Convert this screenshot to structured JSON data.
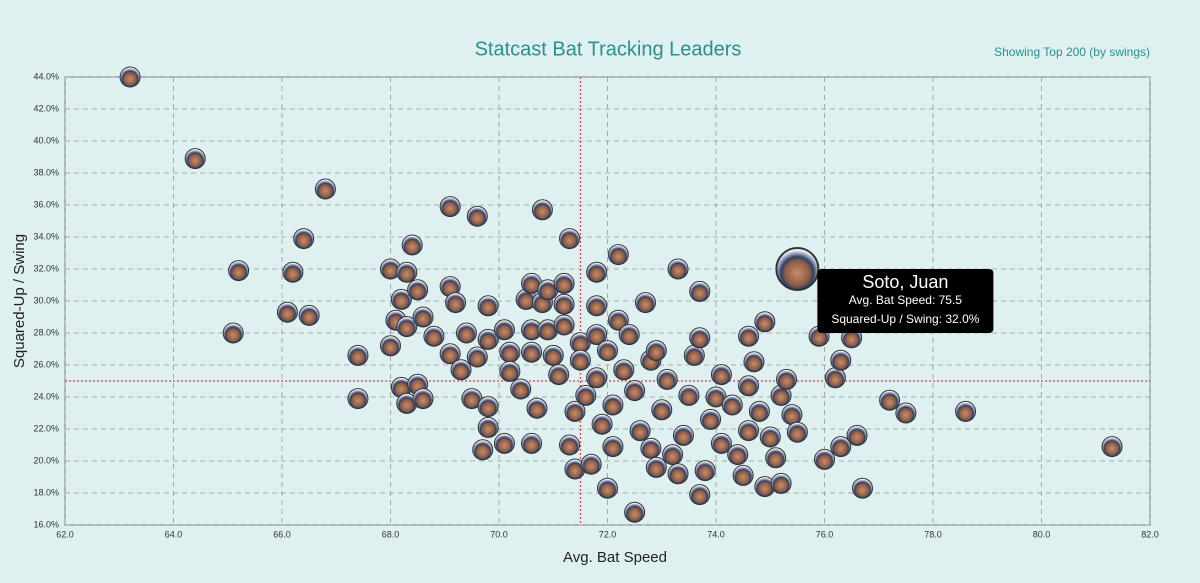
{
  "chart_data": {
    "type": "scatter",
    "title": "Statcast Bat Tracking Leaders",
    "subtitle": "Showing Top 200 (by swings)",
    "x_label": "Avg. Bat Speed",
    "y_label": "Squared-Up / Swing",
    "xlim": [
      62,
      82
    ],
    "ylim": [
      16,
      44
    ],
    "xticks": [
      {
        "value": 62,
        "label": "62.0"
      },
      {
        "value": 64,
        "label": "64.0"
      },
      {
        "value": 66,
        "label": "66.0"
      },
      {
        "value": 68,
        "label": "68.0"
      },
      {
        "value": 70,
        "label": "70.0"
      },
      {
        "value": 72,
        "label": "72.0"
      },
      {
        "value": 74,
        "label": "74.0"
      },
      {
        "value": 76,
        "label": "76.0"
      },
      {
        "value": 78,
        "label": "78.0"
      },
      {
        "value": 80,
        "label": "80.0"
      },
      {
        "value": 82,
        "label": "82.0"
      }
    ],
    "yticks": [
      {
        "value": 16,
        "label": "16.0%"
      },
      {
        "value": 18,
        "label": "18.0%"
      },
      {
        "value": 20,
        "label": "20.0%"
      },
      {
        "value": 22,
        "label": "22.0%"
      },
      {
        "value": 24,
        "label": "24.0%"
      },
      {
        "value": 26,
        "label": "26.0%"
      },
      {
        "value": 28,
        "label": "28.0%"
      },
      {
        "value": 30,
        "label": "30.0%"
      },
      {
        "value": 32,
        "label": "32.0%"
      },
      {
        "value": 34,
        "label": "34.0%"
      },
      {
        "value": 36,
        "label": "36.0%"
      },
      {
        "value": 38,
        "label": "38.0%"
      },
      {
        "value": 40,
        "label": "40.0%"
      },
      {
        "value": 42,
        "label": "42.0%"
      },
      {
        "value": 44,
        "label": "44.0%"
      }
    ],
    "grid": true,
    "ref_x": 71.5,
    "ref_y": 25,
    "ref_color": "#e8414f",
    "x": [
      63.2,
      64.4,
      66.8,
      69.1,
      69.6,
      70.8,
      66.4,
      68.4,
      71.3,
      72.2,
      65.2,
      66.2,
      68.0,
      68.3,
      71.8,
      73.3,
      66.1,
      66.5,
      65.1,
      67.4,
      68.0,
      68.2,
      68.5,
      69.1,
      69.2,
      68.1,
      68.3,
      68.6,
      68.8,
      67.4,
      68.2,
      68.3,
      68.5,
      68.6,
      69.1,
      69.3,
      69.4,
      69.5,
      69.6,
      69.8,
      69.8,
      69.8,
      69.7,
      69.8,
      70.1,
      70.1,
      70.2,
      70.2,
      70.4,
      70.5,
      70.6,
      70.6,
      70.6,
      70.6,
      70.7,
      70.8,
      70.9,
      70.9,
      71.0,
      71.1,
      71.2,
      71.2,
      71.2,
      71.3,
      71.4,
      71.4,
      71.5,
      71.5,
      71.6,
      71.7,
      71.8,
      71.8,
      71.8,
      71.9,
      72.0,
      72.0,
      72.1,
      72.1,
      72.2,
      72.3,
      72.4,
      72.5,
      72.5,
      72.6,
      72.7,
      72.8,
      72.8,
      72.9,
      72.9,
      73.0,
      73.1,
      73.2,
      73.3,
      73.4,
      73.5,
      73.6,
      73.7,
      73.7,
      73.7,
      73.8,
      73.9,
      74.0,
      74.1,
      74.1,
      74.3,
      74.4,
      74.5,
      74.6,
      74.6,
      74.6,
      74.7,
      74.8,
      74.9,
      74.9,
      75.0,
      75.1,
      75.2,
      75.2,
      75.3,
      75.4,
      75.5,
      75.9,
      76.0,
      76.2,
      76.3,
      76.3,
      76.5,
      76.6,
      76.7,
      77.2,
      77.5,
      78.6,
      81.3
    ],
    "values": [
      44.0,
      38.9,
      37.0,
      35.9,
      35.3,
      35.7,
      33.9,
      33.5,
      33.9,
      32.9,
      31.9,
      31.8,
      32.0,
      31.8,
      31.8,
      32.0,
      29.3,
      29.1,
      28.0,
      26.6,
      27.2,
      30.1,
      30.7,
      30.9,
      29.9,
      28.8,
      28.4,
      29.0,
      27.8,
      23.9,
      24.6,
      23.6,
      24.8,
      23.9,
      26.7,
      25.7,
      28.0,
      23.9,
      26.5,
      29.7,
      23.4,
      27.6,
      20.7,
      22.1,
      21.1,
      28.2,
      26.8,
      25.6,
      24.5,
      30.1,
      31.1,
      28.2,
      26.8,
      21.1,
      23.3,
      29.9,
      30.7,
      28.2,
      26.6,
      25.4,
      29.8,
      31.1,
      28.5,
      21.0,
      23.1,
      19.5,
      27.4,
      26.3,
      24.1,
      19.8,
      29.7,
      27.9,
      25.2,
      22.3,
      26.9,
      18.3,
      20.9,
      23.5,
      28.8,
      25.7,
      27.9,
      16.8,
      24.4,
      21.9,
      29.9,
      26.3,
      20.8,
      26.9,
      19.6,
      23.2,
      25.1,
      20.4,
      19.2,
      21.6,
      24.1,
      26.6,
      30.6,
      27.7,
      17.9,
      19.4,
      22.6,
      24.0,
      21.1,
      25.4,
      23.5,
      20.4,
      19.1,
      21.9,
      24.7,
      27.8,
      26.2,
      23.1,
      28.7,
      18.4,
      21.5,
      20.2,
      24.1,
      18.6,
      25.1,
      22.9,
      21.8,
      27.8,
      20.1,
      25.2,
      20.9,
      26.3,
      27.7,
      21.6,
      18.3,
      23.8,
      23.0,
      23.1,
      20.9
    ],
    "highlight": {
      "name": "Soto, Juan",
      "x": 75.5,
      "y": 32.0,
      "lines": [
        "Avg. Bat Speed: 75.5",
        "Squared-Up / Swing: 32.0%"
      ]
    }
  }
}
